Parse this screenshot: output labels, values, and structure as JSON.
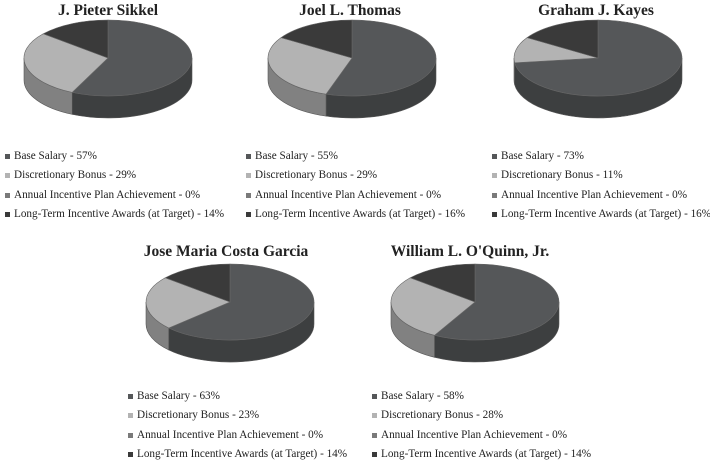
{
  "colors": {
    "base_salary": "#555759",
    "discretionary_bonus": "#b3b3b3",
    "annual_incentive": "#7a7a7a",
    "long_term": "#3a3a3a"
  },
  "chart_data": [
    {
      "type": "pie",
      "title": "J. Pieter Sikkel",
      "labels": [
        "Base Salary",
        "Discretionary Bonus",
        "Annual Incentive Plan Achievement",
        "Long-Term Incentive Awards (at Target)"
      ],
      "values": [
        57,
        29,
        0,
        14
      ],
      "legend": [
        "Base Salary - 57%",
        "Discretionary Bonus - 29%",
        "Annual Incentive Plan Achievement - 0%",
        "Long-Term Incentive Awards (at Target) - 14%"
      ]
    },
    {
      "type": "pie",
      "title": "Joel L. Thomas",
      "labels": [
        "Base Salary",
        "Discretionary Bonus",
        "Annual Incentive Plan Achievement",
        "Long-Term Incentive Awards (at Target)"
      ],
      "values": [
        55,
        29,
        0,
        16
      ],
      "legend": [
        "Base Salary - 55%",
        "Discretionary Bonus - 29%",
        "Annual Incentive Plan Achievement - 0%",
        "Long-Term Incentive Awards (at Target) - 16%"
      ]
    },
    {
      "type": "pie",
      "title": "Graham J. Kayes",
      "labels": [
        "Base Salary",
        "Discretionary Bonus",
        "Annual Incentive Plan Achievement",
        "Long-Term Incentive Awards (at Target)"
      ],
      "values": [
        73,
        11,
        0,
        16
      ],
      "legend": [
        "Base Salary - 73%",
        "Discretionary Bonus - 11%",
        "Annual Incentive Plan Achievement - 0%",
        "Long-Term Incentive Awards (at Target) - 16%"
      ]
    },
    {
      "type": "pie",
      "title": "Jose Maria Costa Garcia",
      "labels": [
        "Base Salary",
        "Discretionary Bonus",
        "Annual Incentive Plan Achievement",
        "Long-Term Incentive Awards (at Target)"
      ],
      "values": [
        63,
        23,
        0,
        14
      ],
      "legend": [
        "Base Salary - 63%",
        "Discretionary Bonus - 23%",
        "Annual Incentive Plan Achievement - 0%",
        "Long-Term Incentive Awards (at Target) - 14%"
      ]
    },
    {
      "type": "pie",
      "title": "William L. O'Quinn, Jr.",
      "labels": [
        "Base Salary",
        "Discretionary Bonus",
        "Annual Incentive Plan Achievement",
        "Long-Term Incentive Awards (at Target)"
      ],
      "values": [
        58,
        28,
        0,
        14
      ],
      "legend": [
        "Base Salary - 58%",
        "Discretionary Bonus - 28%",
        "Annual Incentive Plan Achievement - 0%",
        "Long-Term Incentive Awards (at Target) - 14%"
      ]
    }
  ]
}
